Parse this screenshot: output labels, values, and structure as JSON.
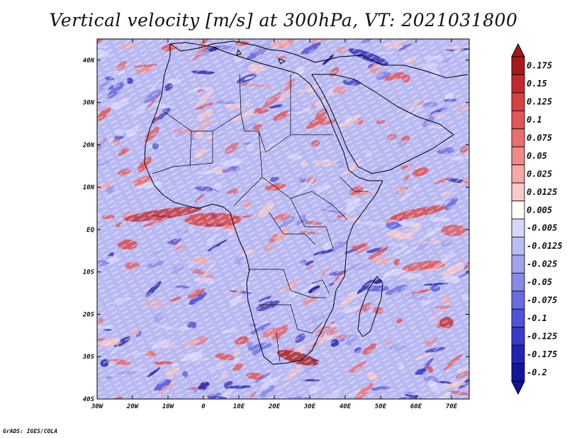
{
  "title": "Vertical velocity [m/s] at 300hPa, VT: 2021031800",
  "credit": "GrADS: IGES/COLA",
  "map": {
    "projection": "lat-lon",
    "lon_range": [
      -30,
      75
    ],
    "lat_range": [
      -40,
      45
    ],
    "lon_ticks": [
      "30W",
      "20W",
      "10W",
      "0",
      "10E",
      "20E",
      "30E",
      "40E",
      "50E",
      "60E",
      "70E"
    ],
    "lat_ticks": [
      "40N",
      "30N",
      "20N",
      "10N",
      "EQ",
      "10S",
      "20S",
      "30S",
      "40S"
    ],
    "variable": "vertical velocity",
    "units": "m/s",
    "level": "300hPa",
    "valid_time": "2021031800"
  },
  "colorbar": {
    "levels": [
      "0.175",
      "0.15",
      "0.125",
      "0.1",
      "0.075",
      "0.05",
      "0.025",
      "0.0125",
      "0.005",
      "-0.005",
      "-0.0125",
      "-0.025",
      "-0.05",
      "-0.075",
      "-0.1",
      "-0.125",
      "-0.175",
      "-0.2"
    ],
    "colors": [
      "#a81818",
      "#c42a2a",
      "#d84040",
      "#e25656",
      "#ea6e6e",
      "#f08a8a",
      "#f5a8a8",
      "#f9c8c8",
      "#ffffff",
      "#d6d6f8",
      "#bcbcf4",
      "#a2a2ef",
      "#8888ea",
      "#6c6ce2",
      "#5252d8",
      "#3a3acc",
      "#2424b4",
      "#141498"
    ]
  }
}
